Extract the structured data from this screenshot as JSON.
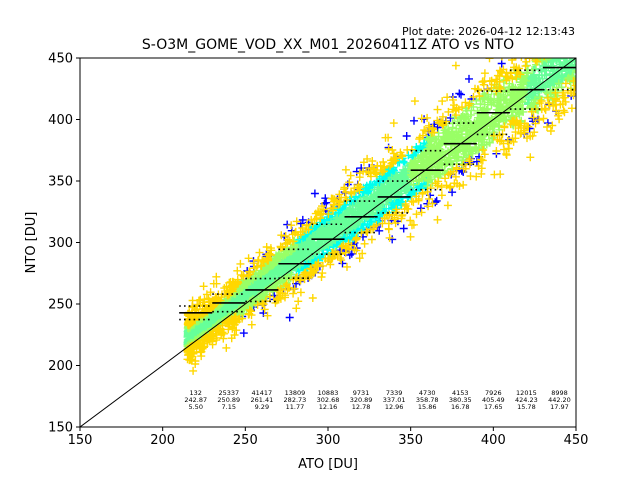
{
  "plot_date": "Plot date: 2026-04-12 12:13:43",
  "chart_data": {
    "type": "scatter",
    "title": "S-O3M_GOME_VOD_XX_M01_20260411Z ATO vs NTO",
    "xlabel": "ATO [DU]",
    "ylabel": "NTO [DU]",
    "xlim": [
      150,
      450
    ],
    "ylim": [
      150,
      450
    ],
    "xticks": [
      150,
      200,
      250,
      300,
      350,
      400,
      450
    ],
    "yticks": [
      150,
      200,
      250,
      300,
      350,
      400,
      450
    ],
    "grid": false,
    "legend": "none",
    "reference_line": {
      "x": [
        150,
        450
      ],
      "y": [
        150,
        450
      ]
    },
    "density_colors": [
      "#0000ff",
      "#00ffee",
      "#66ff99",
      "#99ff66",
      "#ffd700"
    ],
    "bins": [
      {
        "x0": 210,
        "x1": 230,
        "count": "132",
        "mean": "242.87",
        "std": "5.50"
      },
      {
        "x0": 230,
        "x1": 250,
        "count": "25337",
        "mean": "250.89",
        "std": "7.15"
      },
      {
        "x0": 250,
        "x1": 270,
        "count": "41417",
        "mean": "261.41",
        "std": "9.29"
      },
      {
        "x0": 270,
        "x1": 290,
        "count": "13809",
        "mean": "282.73",
        "std": "11.77"
      },
      {
        "x0": 290,
        "x1": 310,
        "count": "10883",
        "mean": "302.68",
        "std": "12.16"
      },
      {
        "x0": 310,
        "x1": 330,
        "count": "9731",
        "mean": "320.89",
        "std": "12.78"
      },
      {
        "x0": 330,
        "x1": 350,
        "count": "7339",
        "mean": "337.01",
        "std": "12.96"
      },
      {
        "x0": 350,
        "x1": 370,
        "count": "4730",
        "mean": "358.78",
        "std": "15.86"
      },
      {
        "x0": 370,
        "x1": 390,
        "count": "4153",
        "mean": "380.35",
        "std": "16.78"
      },
      {
        "x0": 390,
        "x1": 410,
        "count": "7926",
        "mean": "405.49",
        "std": "17.65"
      },
      {
        "x0": 410,
        "x1": 430,
        "count": "12015",
        "mean": "424.23",
        "std": "15.78"
      },
      {
        "x0": 430,
        "x1": 450,
        "count": "8998",
        "mean": "442.20",
        "std": "17.97"
      }
    ]
  }
}
